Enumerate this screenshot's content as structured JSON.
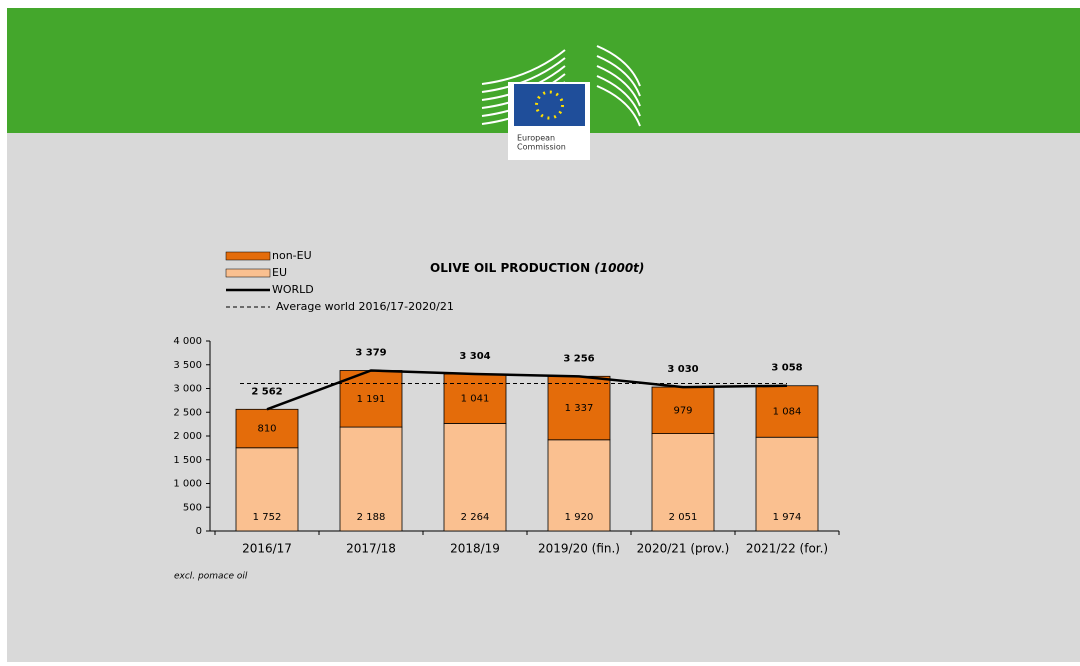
{
  "header": {
    "logo_text": [
      "European",
      "Commission"
    ]
  },
  "chart_data": {
    "type": "bar",
    "stacked": true,
    "title": "OLIVE OIL PRODUCTION",
    "title_unit": "(1000t)",
    "footnote": "excl. pomace oil",
    "categories": [
      "2016/17",
      "2017/18",
      "2018/19",
      "2019/20 (fin.)",
      "2020/21 (prov.)",
      "2021/22 (for.)"
    ],
    "series": [
      {
        "name": "non-EU",
        "type": "bar",
        "color": "#e46c0a",
        "values": [
          810,
          1191,
          1041,
          1337,
          979,
          1084
        ],
        "value_labels": [
          "810",
          "1 191",
          "1 041",
          "1 337",
          "979",
          "1 084"
        ]
      },
      {
        "name": "EU",
        "type": "bar",
        "color": "#fac090",
        "values": [
          1752,
          2188,
          2264,
          1920,
          2051,
          1974
        ],
        "value_labels": [
          "1 752",
          "2 188",
          "2 264",
          "1 920",
          "2 051",
          "1 974"
        ]
      },
      {
        "name": "WORLD",
        "type": "line",
        "color": "#000000",
        "values": [
          2562,
          3379,
          3304,
          3256,
          3030,
          3058
        ],
        "value_labels": [
          "2 562",
          "3 379",
          "3 304",
          "3 256",
          "3 030",
          "3 058"
        ]
      }
    ],
    "average": {
      "name": "Average world 2016/17-2020/21",
      "value": 3106,
      "color": "#000000"
    },
    "ylim": [
      0,
      4000
    ],
    "yticks": [
      0,
      500,
      {
        "value": 1000,
        "label": "1 000"
      },
      {
        "value": 1500,
        "label": "1 500"
      },
      {
        "value": 2000,
        "label": "2 000"
      },
      {
        "value": 2500,
        "label": "2 500"
      },
      {
        "value": 3000,
        "label": "3 000"
      },
      {
        "value": 3500,
        "label": "3 500"
      },
      {
        "value": 4000,
        "label": "4 000"
      }
    ]
  }
}
